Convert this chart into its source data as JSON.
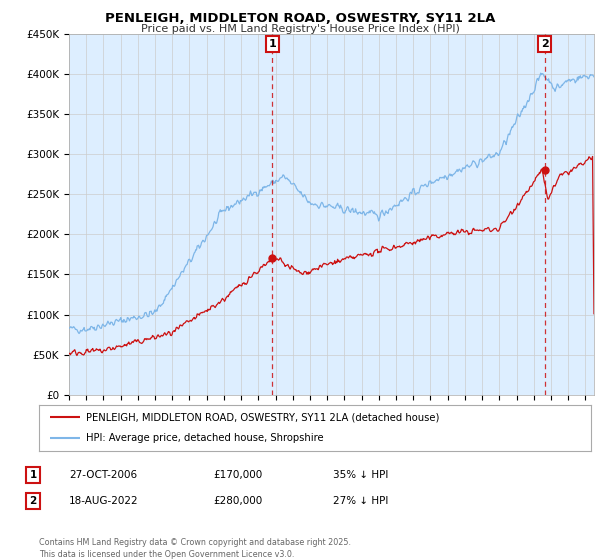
{
  "title": "PENLEIGH, MIDDLETON ROAD, OSWESTRY, SY11 2LA",
  "subtitle": "Price paid vs. HM Land Registry's House Price Index (HPI)",
  "ylabel_ticks": [
    "£0",
    "£50K",
    "£100K",
    "£150K",
    "£200K",
    "£250K",
    "£300K",
    "£350K",
    "£400K",
    "£450K"
  ],
  "ytick_values": [
    0,
    50000,
    100000,
    150000,
    200000,
    250000,
    300000,
    350000,
    400000,
    450000
  ],
  "ylim": [
    0,
    450000
  ],
  "xlim_start": 1995.0,
  "xlim_end": 2025.5,
  "hpi_color": "#7eb6e8",
  "price_color": "#cc1111",
  "vline_color": "#cc1111",
  "marker1_x": 2006.82,
  "marker1_y": 170000,
  "marker2_x": 2022.63,
  "marker2_y": 280000,
  "legend_line1": "PENLEIGH, MIDDLETON ROAD, OSWESTRY, SY11 2LA (detached house)",
  "legend_line2": "HPI: Average price, detached house, Shropshire",
  "table_rows": [
    {
      "num": "1",
      "date": "27-OCT-2006",
      "price": "£170,000",
      "hpi": "35% ↓ HPI"
    },
    {
      "num": "2",
      "date": "18-AUG-2022",
      "price": "£280,000",
      "hpi": "27% ↓ HPI"
    }
  ],
  "footnote": "Contains HM Land Registry data © Crown copyright and database right 2025.\nThis data is licensed under the Open Government Licence v3.0.",
  "background_color": "#ffffff",
  "grid_color": "#cccccc",
  "plot_bg_color": "#ddeeff"
}
